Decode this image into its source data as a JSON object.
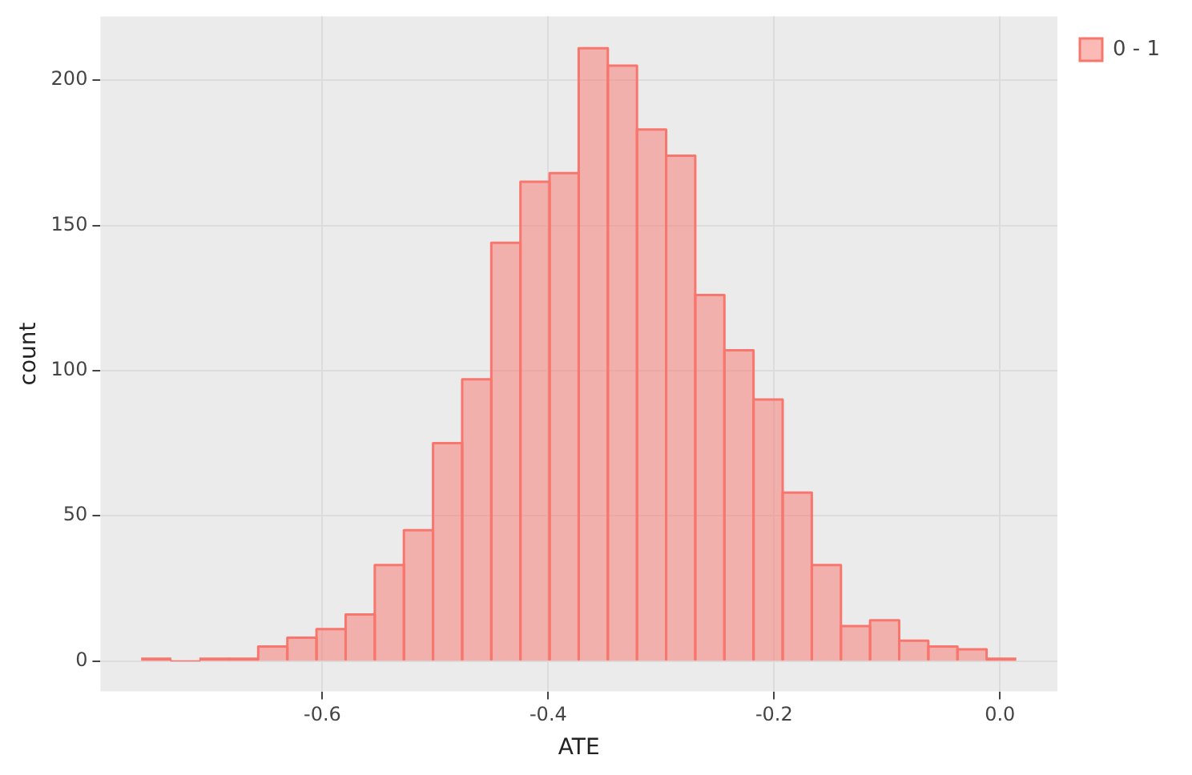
{
  "chart_data": {
    "type": "histogram",
    "xlabel": "ATE",
    "ylabel": "count",
    "bins": [
      -0.76,
      -0.7342,
      -0.7084,
      -0.6826,
      -0.6568,
      -0.631,
      -0.6052,
      -0.5794,
      -0.5536,
      -0.5278,
      -0.502,
      -0.4762,
      -0.4504,
      -0.4246,
      -0.3988,
      -0.373,
      -0.3472,
      -0.3214,
      -0.2956,
      -0.2698,
      -0.244,
      -0.2182,
      -0.1924,
      -0.1666,
      -0.1408,
      -0.115,
      -0.0892,
      -0.0634,
      -0.0376,
      -0.0118,
      0.014
    ],
    "series": [
      {
        "name": "0 - 1",
        "color": "#f8766d",
        "values": [
          1,
          0,
          1,
          1,
          5,
          8,
          11,
          16,
          33,
          45,
          75,
          97,
          144,
          165,
          168,
          211,
          205,
          183,
          174,
          126,
          107,
          90,
          58,
          33,
          12,
          14,
          7,
          5,
          4,
          1
        ]
      }
    ],
    "xlim": [
      -0.7965,
      0.0509
    ],
    "xticks": [
      -0.6,
      -0.4,
      -0.2,
      {
        "value": 0,
        "label": "0.0"
      }
    ],
    "ylim": [
      -10.5,
      222
    ],
    "yticks": [
      0,
      50,
      100,
      150,
      200
    ],
    "grid": true,
    "legend": "right"
  }
}
